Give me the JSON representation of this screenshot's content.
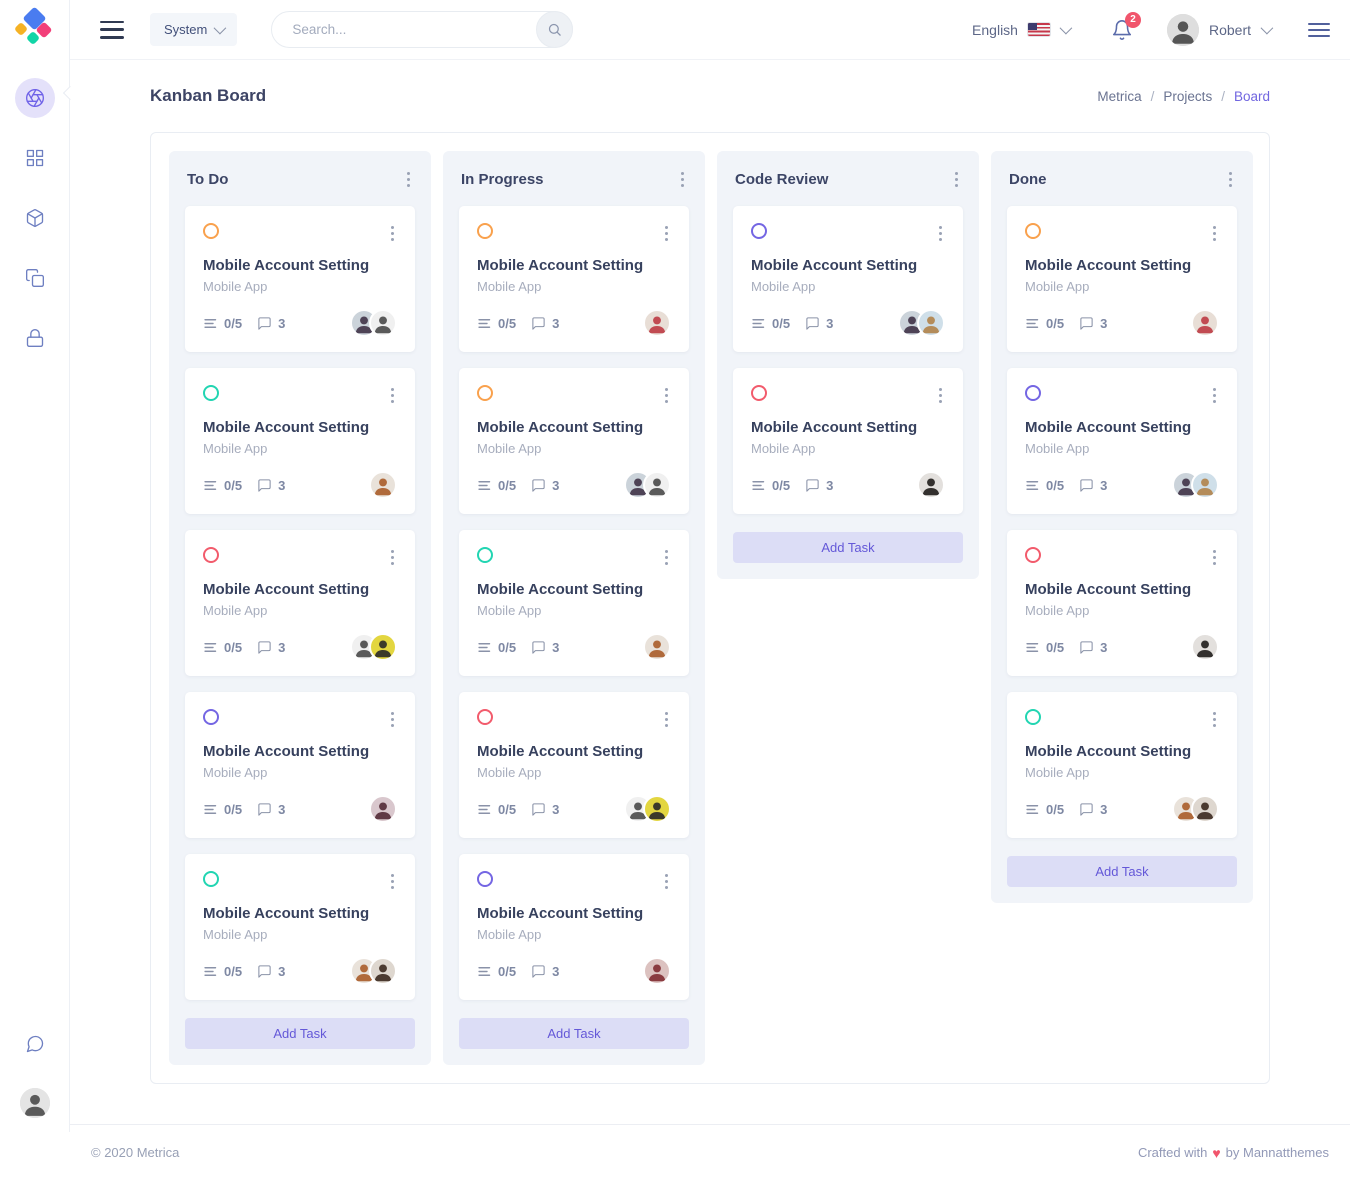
{
  "topbar": {
    "system": {
      "label": "System"
    },
    "search": {
      "placeholder": "Search..."
    },
    "language": {
      "label": "English"
    },
    "notifications": {
      "badge": "2"
    },
    "user": {
      "name": "Robert"
    }
  },
  "page_header": {
    "title": "Kanban Board",
    "breadcrumb": {
      "items": [
        "Metrica",
        "Projects"
      ],
      "active": "Board",
      "separator": "/"
    }
  },
  "board": {
    "card_template": {
      "title": "Mobile Account Setting",
      "subtitle": "Mobile App",
      "tasks": "0/5",
      "comments": "3"
    },
    "add_task_label": "Add Task",
    "columns": [
      {
        "title": "To Do",
        "cards": [
          {
            "dot": "orange",
            "avatars": [
              "man-sunglasses",
              "man-beard-mono"
            ]
          },
          {
            "dot": "green",
            "avatars": [
              "man-ginger-beard"
            ]
          },
          {
            "dot": "red",
            "avatars": [
              "man-beard-mono",
              "man-yellow-bg"
            ]
          },
          {
            "dot": "blue",
            "avatars": [
              "woman-short-hair"
            ]
          },
          {
            "dot": "green",
            "avatars": [
              "man-ginger-beard",
              "man-smiling"
            ]
          }
        ]
      },
      {
        "title": "In Progress",
        "cards": [
          {
            "dot": "orange",
            "avatars": [
              "man-curly-red-shirt"
            ]
          },
          {
            "dot": "orange",
            "avatars": [
              "man-sunglasses",
              "man-beard-mono"
            ]
          },
          {
            "dot": "green",
            "avatars": [
              "man-ginger-beard"
            ]
          },
          {
            "dot": "red",
            "avatars": [
              "man-beard-mono",
              "man-yellow-bg"
            ]
          },
          {
            "dot": "blue",
            "avatars": [
              "woman-redhead"
            ]
          }
        ]
      },
      {
        "title": "Code Review",
        "cards": [
          {
            "dot": "blue",
            "avatars": [
              "man-sunglasses",
              "woman-blonde"
            ]
          },
          {
            "dot": "red",
            "avatars": [
              "woman-dark-hair"
            ]
          }
        ]
      },
      {
        "title": "Done",
        "cards": [
          {
            "dot": "orange",
            "avatars": [
              "man-curly-red-shirt"
            ]
          },
          {
            "dot": "blue",
            "avatars": [
              "man-sunglasses",
              "woman-blonde"
            ]
          },
          {
            "dot": "red",
            "avatars": [
              "woman-dark-hair"
            ]
          },
          {
            "dot": "green",
            "avatars": [
              "man-ginger-beard",
              "man-smiling"
            ]
          }
        ]
      }
    ]
  },
  "sidebar": {
    "icons": [
      "aperture-icon",
      "grid-icon",
      "package-icon",
      "copy-icon",
      "lock-icon",
      "chat-bubble-icon"
    ],
    "active_icon": "aperture-icon"
  },
  "footer": {
    "copyright": "© 2020 Metrica",
    "credit_prefix": "Crafted with",
    "credit_heart": "♥",
    "credit_suffix": "by Mannatthemes"
  },
  "colors": {
    "orange": "#f9a14d",
    "green": "#22d5b2",
    "red": "#f25b6c",
    "blue": "#7466e3",
    "accent": "#6f62e8",
    "badge_red": "#f1556c"
  },
  "avatar_palette": {
    "man-sunglasses": {
      "bg": "#cbd3da",
      "fg": "#4e4356"
    },
    "man-beard-mono": {
      "bg": "#f0f0f0",
      "fg": "#5a5a5a"
    },
    "man-ginger-beard": {
      "bg": "#e9e2da",
      "fg": "#b06a3b"
    },
    "man-yellow-bg": {
      "bg": "#e3d640",
      "fg": "#3c3a2a"
    },
    "woman-short-hair": {
      "bg": "#d9c7cd",
      "fg": "#603a45"
    },
    "man-curly-red-shirt": {
      "bg": "#e8ded6",
      "fg": "#c14b52"
    },
    "woman-redhead": {
      "bg": "#dcc2c0",
      "fg": "#8a3b40"
    },
    "woman-blonde": {
      "bg": "#cfdfe9",
      "fg": "#b48c5a"
    },
    "woman-dark-hair": {
      "bg": "#e3e0dd",
      "fg": "#33302e"
    },
    "man-smiling": {
      "bg": "#ded7cf",
      "fg": "#4b3a30"
    }
  }
}
